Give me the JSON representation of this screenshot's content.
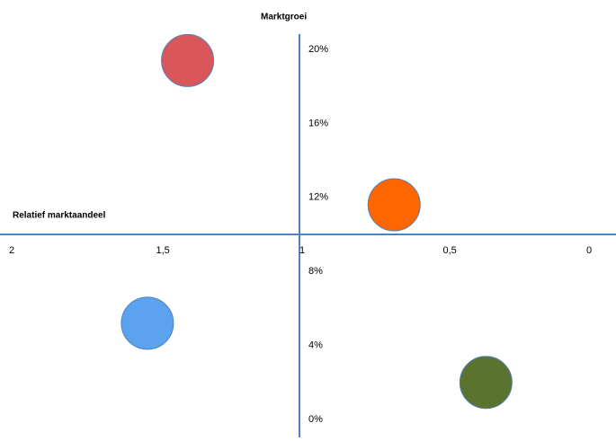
{
  "chart_data": {
    "type": "scatter",
    "x_label": "Relatief marktaandeel",
    "y_label": "Marktgroei",
    "x": [
      1.39,
      0.67,
      1.53,
      0.35
    ],
    "values": [
      19.4,
      11.6,
      5.2,
      2.0
    ],
    "colors": [
      "#d9575a",
      "#ff6600",
      "#5ba3ef",
      "#5a7430"
    ],
    "xlim": [
      2,
      0
    ],
    "xticks": [
      2,
      {
        "value": 1.5,
        "label": "1,5"
      },
      1,
      {
        "value": 0.5,
        "label": "0,5"
      },
      0
    ],
    "ylim": [
      0,
      20
    ],
    "yticks": [
      {
        "value": 0,
        "label": "0%"
      },
      {
        "value": 4,
        "label": "4%"
      },
      {
        "value": 8,
        "label": "8%"
      },
      {
        "value": 12,
        "label": "12%"
      },
      {
        "value": 16,
        "label": "16%"
      },
      {
        "value": 20,
        "label": "20%"
      }
    ]
  }
}
